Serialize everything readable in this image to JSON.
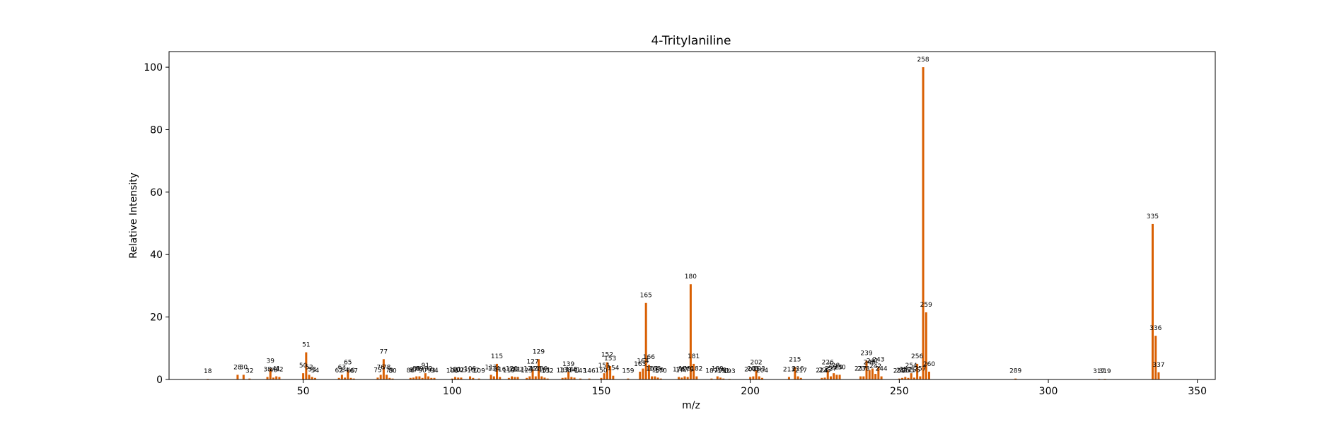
{
  "chart_data": {
    "type": "bar",
    "title": "4-Tritylaniline",
    "xlabel": "m/z",
    "ylabel": "Relative Intensity",
    "xlim": [
      5,
      356
    ],
    "ylim": [
      0,
      105
    ],
    "x_ticks": [
      50,
      100,
      150,
      200,
      250,
      300,
      350
    ],
    "y_ticks": [
      0,
      20,
      40,
      60,
      80,
      100
    ],
    "grid": false,
    "legend": "none",
    "bar_color": "#d95f02",
    "peaks": [
      {
        "mz": 18,
        "intensity": 0.2,
        "label": "18"
      },
      {
        "mz": 28,
        "intensity": 1.5,
        "label": "28"
      },
      {
        "mz": 30,
        "intensity": 1.5,
        "label": "30"
      },
      {
        "mz": 32,
        "intensity": 0.3,
        "label": "32"
      },
      {
        "mz": 38,
        "intensity": 0.8,
        "label": "38"
      },
      {
        "mz": 39,
        "intensity": 3.5,
        "label": "39"
      },
      {
        "mz": 40,
        "intensity": 0.6,
        "label": "40"
      },
      {
        "mz": 41,
        "intensity": 1.0,
        "label": "41"
      },
      {
        "mz": 42,
        "intensity": 0.8,
        "label": "42"
      },
      {
        "mz": 50,
        "intensity": 2.0,
        "label": "50"
      },
      {
        "mz": 51,
        "intensity": 8.7,
        "label": "51"
      },
      {
        "mz": 52,
        "intensity": 1.5,
        "label": "52"
      },
      {
        "mz": 53,
        "intensity": 0.8,
        "label": "53"
      },
      {
        "mz": 54,
        "intensity": 0.5,
        "label": "54"
      },
      {
        "mz": 62,
        "intensity": 0.5,
        "label": "62"
      },
      {
        "mz": 63,
        "intensity": 1.5,
        "label": "63"
      },
      {
        "mz": 64,
        "intensity": 0.6,
        "label": "64"
      },
      {
        "mz": 65,
        "intensity": 3.0,
        "label": "65"
      },
      {
        "mz": 66,
        "intensity": 0.5,
        "label": "66"
      },
      {
        "mz": 67,
        "intensity": 0.3,
        "label": "67"
      },
      {
        "mz": 75,
        "intensity": 0.6,
        "label": "75"
      },
      {
        "mz": 76,
        "intensity": 1.5,
        "label": "76"
      },
      {
        "mz": 77,
        "intensity": 6.5,
        "label": "77"
      },
      {
        "mz": 78,
        "intensity": 1.5,
        "label": "78"
      },
      {
        "mz": 79,
        "intensity": 0.5,
        "label": "79"
      },
      {
        "mz": 80,
        "intensity": 0.3,
        "label": "80"
      },
      {
        "mz": 86,
        "intensity": 0.5,
        "label": "86"
      },
      {
        "mz": 87,
        "intensity": 0.6,
        "label": "87"
      },
      {
        "mz": 88,
        "intensity": 1.0,
        "label": "88"
      },
      {
        "mz": 89,
        "intensity": 1.0,
        "label": "89"
      },
      {
        "mz": 90,
        "intensity": 0.5,
        "label": "90"
      },
      {
        "mz": 91,
        "intensity": 2.0,
        "label": "91"
      },
      {
        "mz": 92,
        "intensity": 1.0,
        "label": "92"
      },
      {
        "mz": 93,
        "intensity": 0.5,
        "label": "93"
      },
      {
        "mz": 94,
        "intensity": 0.5,
        "label": "94"
      },
      {
        "mz": 100,
        "intensity": 0.3,
        "label": "100"
      },
      {
        "mz": 101,
        "intensity": 0.8,
        "label": "101"
      },
      {
        "mz": 102,
        "intensity": 0.6,
        "label": "102"
      },
      {
        "mz": 103,
        "intensity": 0.6,
        "label": "103"
      },
      {
        "mz": 106,
        "intensity": 1.0,
        "label": "106"
      },
      {
        "mz": 107,
        "intensity": 0.5,
        "label": "107"
      },
      {
        "mz": 109,
        "intensity": 0.3,
        "label": "109"
      },
      {
        "mz": 113,
        "intensity": 1.5,
        "label": "113"
      },
      {
        "mz": 114,
        "intensity": 1.0,
        "label": "114"
      },
      {
        "mz": 115,
        "intensity": 5.0,
        "label": "115"
      },
      {
        "mz": 116,
        "intensity": 0.8,
        "label": "116"
      },
      {
        "mz": 119,
        "intensity": 0.5,
        "label": "119"
      },
      {
        "mz": 120,
        "intensity": 1.0,
        "label": "120"
      },
      {
        "mz": 121,
        "intensity": 0.8,
        "label": "121"
      },
      {
        "mz": 122,
        "intensity": 0.8,
        "label": "122"
      },
      {
        "mz": 125,
        "intensity": 0.5,
        "label": "125"
      },
      {
        "mz": 126,
        "intensity": 1.0,
        "label": "126"
      },
      {
        "mz": 127,
        "intensity": 3.3,
        "label": "127"
      },
      {
        "mz": 128,
        "intensity": 1.0,
        "label": "128"
      },
      {
        "mz": 129,
        "intensity": 6.5,
        "label": "129"
      },
      {
        "mz": 130,
        "intensity": 1.0,
        "label": "130"
      },
      {
        "mz": 131,
        "intensity": 0.6,
        "label": "131"
      },
      {
        "mz": 132,
        "intensity": 0.3,
        "label": "132"
      },
      {
        "mz": 137,
        "intensity": 0.5,
        "label": "137"
      },
      {
        "mz": 138,
        "intensity": 0.6,
        "label": "138"
      },
      {
        "mz": 139,
        "intensity": 2.5,
        "label": "139"
      },
      {
        "mz": 140,
        "intensity": 0.8,
        "label": "140"
      },
      {
        "mz": 141,
        "intensity": 0.6,
        "label": "141"
      },
      {
        "mz": 143,
        "intensity": 0.3,
        "label": "143"
      },
      {
        "mz": 146,
        "intensity": 0.3,
        "label": "146"
      },
      {
        "mz": 150,
        "intensity": 0.5,
        "label": "150"
      },
      {
        "mz": 151,
        "intensity": 2.0,
        "label": "151"
      },
      {
        "mz": 152,
        "intensity": 5.5,
        "label": "152"
      },
      {
        "mz": 153,
        "intensity": 4.3,
        "label": "153"
      },
      {
        "mz": 154,
        "intensity": 1.2,
        "label": "154"
      },
      {
        "mz": 159,
        "intensity": 0.3,
        "label": "159"
      },
      {
        "mz": 163,
        "intensity": 2.5,
        "label": "163"
      },
      {
        "mz": 164,
        "intensity": 3.5,
        "label": "164"
      },
      {
        "mz": 165,
        "intensity": 24.5,
        "label": "165"
      },
      {
        "mz": 166,
        "intensity": 4.7,
        "label": "166"
      },
      {
        "mz": 167,
        "intensity": 1.0,
        "label": "167"
      },
      {
        "mz": 168,
        "intensity": 1.0,
        "label": "168"
      },
      {
        "mz": 169,
        "intensity": 0.6,
        "label": "169"
      },
      {
        "mz": 170,
        "intensity": 0.3,
        "label": "170"
      },
      {
        "mz": 176,
        "intensity": 0.8,
        "label": "176"
      },
      {
        "mz": 177,
        "intensity": 0.6,
        "label": "177"
      },
      {
        "mz": 178,
        "intensity": 1.0,
        "label": "178"
      },
      {
        "mz": 179,
        "intensity": 0.8,
        "label": "179"
      },
      {
        "mz": 180,
        "intensity": 30.5,
        "label": "180"
      },
      {
        "mz": 181,
        "intensity": 5.0,
        "label": "181"
      },
      {
        "mz": 182,
        "intensity": 1.0,
        "label": "182"
      },
      {
        "mz": 187,
        "intensity": 0.3,
        "label": "187"
      },
      {
        "mz": 189,
        "intensity": 1.0,
        "label": "189"
      },
      {
        "mz": 190,
        "intensity": 0.6,
        "label": "190"
      },
      {
        "mz": 191,
        "intensity": 0.3,
        "label": "191"
      },
      {
        "mz": 193,
        "intensity": 0.2,
        "label": "193"
      },
      {
        "mz": 200,
        "intensity": 0.8,
        "label": "200"
      },
      {
        "mz": 201,
        "intensity": 1.0,
        "label": "201"
      },
      {
        "mz": 202,
        "intensity": 3.0,
        "label": "202"
      },
      {
        "mz": 203,
        "intensity": 1.0,
        "label": "203"
      },
      {
        "mz": 204,
        "intensity": 0.5,
        "label": "204"
      },
      {
        "mz": 213,
        "intensity": 0.8,
        "label": "213"
      },
      {
        "mz": 215,
        "intensity": 4.0,
        "label": "215"
      },
      {
        "mz": 216,
        "intensity": 1.0,
        "label": "216"
      },
      {
        "mz": 217,
        "intensity": 0.5,
        "label": "217"
      },
      {
        "mz": 224,
        "intensity": 0.5,
        "label": "224"
      },
      {
        "mz": 225,
        "intensity": 0.6,
        "label": "225"
      },
      {
        "mz": 226,
        "intensity": 3.0,
        "label": "226"
      },
      {
        "mz": 227,
        "intensity": 1.0,
        "label": "227"
      },
      {
        "mz": 228,
        "intensity": 2.0,
        "label": "228"
      },
      {
        "mz": 229,
        "intensity": 1.5,
        "label": "229"
      },
      {
        "mz": 230,
        "intensity": 1.5,
        "label": "230"
      },
      {
        "mz": 237,
        "intensity": 1.0,
        "label": "237"
      },
      {
        "mz": 238,
        "intensity": 1.0,
        "label": "238"
      },
      {
        "mz": 239,
        "intensity": 6.0,
        "label": "239"
      },
      {
        "mz": 240,
        "intensity": 3.0,
        "label": "240"
      },
      {
        "mz": 241,
        "intensity": 3.5,
        "label": "241"
      },
      {
        "mz": 242,
        "intensity": 1.8,
        "label": "242"
      },
      {
        "mz": 243,
        "intensity": 4.0,
        "label": "243"
      },
      {
        "mz": 244,
        "intensity": 1.0,
        "label": "244"
      },
      {
        "mz": 250,
        "intensity": 0.3,
        "label": "250"
      },
      {
        "mz": 251,
        "intensity": 0.5,
        "label": "251"
      },
      {
        "mz": 252,
        "intensity": 0.8,
        "label": "252"
      },
      {
        "mz": 253,
        "intensity": 0.5,
        "label": "253"
      },
      {
        "mz": 254,
        "intensity": 2.0,
        "label": "254"
      },
      {
        "mz": 255,
        "intensity": 0.6,
        "label": "255"
      },
      {
        "mz": 256,
        "intensity": 5.0,
        "label": "256"
      },
      {
        "mz": 257,
        "intensity": 1.0,
        "label": "257"
      },
      {
        "mz": 258,
        "intensity": 100.0,
        "label": "258"
      },
      {
        "mz": 259,
        "intensity": 21.5,
        "label": "259"
      },
      {
        "mz": 260,
        "intensity": 2.5,
        "label": "260"
      },
      {
        "mz": 289,
        "intensity": 0.3,
        "label": "289"
      },
      {
        "mz": 317,
        "intensity": 0.2,
        "label": "317"
      },
      {
        "mz": 319,
        "intensity": 0.2,
        "label": "319"
      },
      {
        "mz": 335,
        "intensity": 49.8,
        "label": "335"
      },
      {
        "mz": 336,
        "intensity": 14.0,
        "label": "336"
      },
      {
        "mz": 337,
        "intensity": 2.3,
        "label": "337"
      }
    ]
  }
}
